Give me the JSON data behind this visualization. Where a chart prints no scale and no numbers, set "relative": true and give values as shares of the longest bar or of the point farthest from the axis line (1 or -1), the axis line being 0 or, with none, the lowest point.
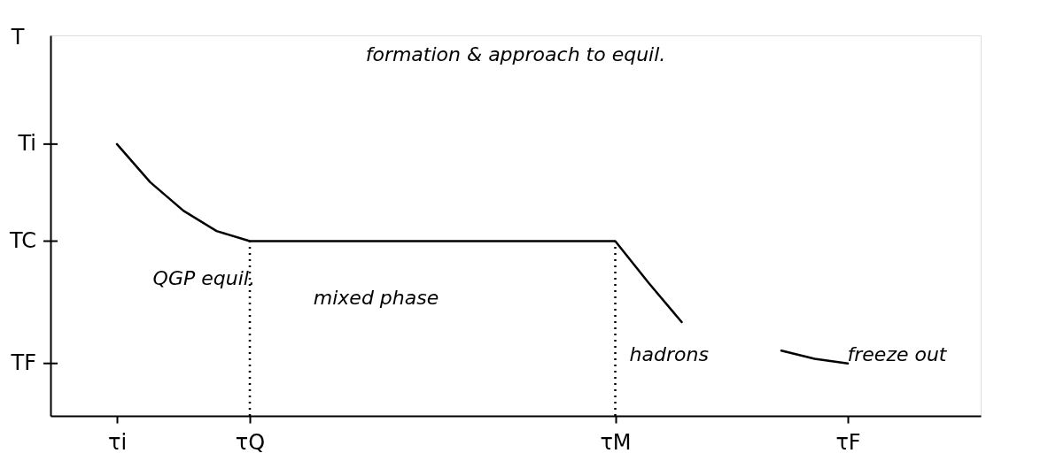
{
  "chart_data": {
    "type": "line",
    "ylabel": "T",
    "relative": true,
    "categories": [
      null,
      null,
      "τi",
      null,
      null,
      null,
      "τQ",
      null,
      null,
      null,
      null,
      null,
      null,
      null,
      null,
      null,
      null,
      "τM",
      null,
      null,
      null,
      null,
      null,
      null,
      "τF",
      null,
      null,
      null,
      null
    ],
    "series": [
      {
        "color": "#000000",
        "values": [
          null,
          null,
          1.0,
          0.86,
          0.755,
          0.68,
          0.643,
          0.643,
          0.643,
          0.643,
          0.643,
          0.643,
          0.643,
          0.643,
          0.643,
          0.643,
          0.643,
          0.643,
          0.49,
          0.345,
          null,
          null,
          0.24,
          0.21,
          0.193,
          null,
          null,
          null,
          null
        ]
      }
    ],
    "ref_lines": [
      {
        "axis": "x",
        "value": "τQ",
        "line_style": "dotted"
      },
      {
        "axis": "x",
        "value": "τM",
        "line_style": "dotted"
      }
    ],
    "annotations": [
      "Ti",
      "TC",
      "TF",
      "formation & approach to equil.",
      "QGP equil.",
      "mixed phase",
      "hadrons",
      "freeze out"
    ],
    "grid": false
  }
}
